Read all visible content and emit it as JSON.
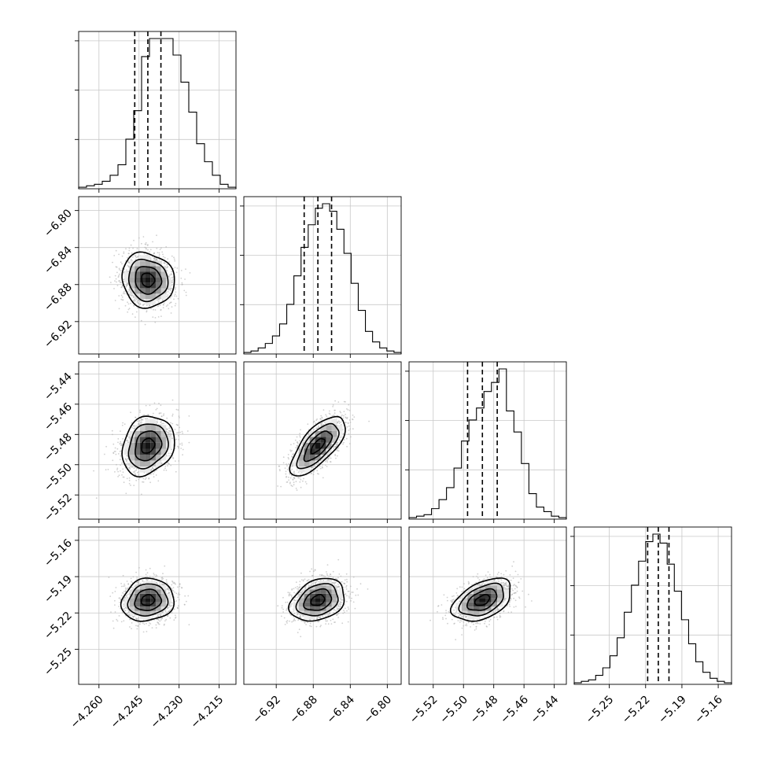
{
  "chart_data": {
    "type": "corner",
    "grid": true,
    "parameters": [
      {
        "ticks": [
          -4.26,
          -4.245,
          -4.23,
          -4.215
        ],
        "tick_labels": [
          "−4.260",
          "−4.245",
          "−4.230",
          "−4.215"
        ],
        "range": [
          -4.2676,
          -4.2087
        ],
        "mean": -4.2417,
        "sd": 0.0049,
        "quantiles": [
          -4.2466,
          -4.2417,
          -4.2368
        ],
        "hist": [
          1,
          2,
          3,
          5,
          9,
          16,
          33,
          52,
          88,
          100,
          100,
          100,
          89,
          71,
          51,
          30,
          18,
          9,
          3,
          1
        ]
      },
      {
        "ticks": [
          -6.92,
          -6.88,
          -6.84,
          -6.8
        ],
        "tick_labels": [
          "−6.92",
          "−6.88",
          "−6.84",
          "−6.80"
        ],
        "range": [
          -6.955,
          -6.785
        ],
        "mean": -6.875,
        "sd": 0.0148,
        "quantiles": [
          -6.8898,
          -6.875,
          -6.8602
        ],
        "hist": [
          1,
          2,
          4,
          7,
          12,
          20,
          33,
          52,
          71,
          86,
          97,
          100,
          95,
          83,
          67,
          47,
          29,
          15,
          8,
          4,
          2,
          1
        ]
      },
      {
        "ticks": [
          -5.52,
          -5.5,
          -5.48,
          -5.46,
          -5.44
        ],
        "tick_labels": [
          "−5.52",
          "−5.50",
          "−5.48",
          "−5.46",
          "−5.44"
        ],
        "range": [
          -5.536,
          -5.432
        ],
        "mean": -5.4875,
        "sd": 0.0098,
        "quantiles": [
          -5.4973,
          -5.4875,
          -5.4777
        ],
        "hist": [
          1,
          2,
          3,
          7,
          13,
          21,
          34,
          52,
          66,
          74,
          85,
          91,
          100,
          72,
          58,
          37,
          17,
          8,
          5,
          2,
          1
        ]
      },
      {
        "ticks": [
          -5.25,
          -5.22,
          -5.19,
          -5.16
        ],
        "tick_labels": [
          "−5.25",
          "−5.22",
          "−5.19",
          "−5.16"
        ],
        "range": [
          -5.279,
          -5.149
        ],
        "mean": -5.2095,
        "sd": 0.0088,
        "quantiles": [
          -5.2183,
          -5.2095,
          -5.2007
        ],
        "hist": [
          1,
          2,
          3,
          6,
          11,
          19,
          31,
          48,
          66,
          82,
          95,
          100,
          94,
          80,
          62,
          43,
          27,
          15,
          8,
          4,
          2,
          1
        ]
      }
    ],
    "correlations": {
      "1-0": -0.08,
      "2-0": 0.2,
      "2-1": 0.7,
      "3-0": 0.1,
      "3-1": 0.28,
      "3-2": 0.45
    }
  }
}
